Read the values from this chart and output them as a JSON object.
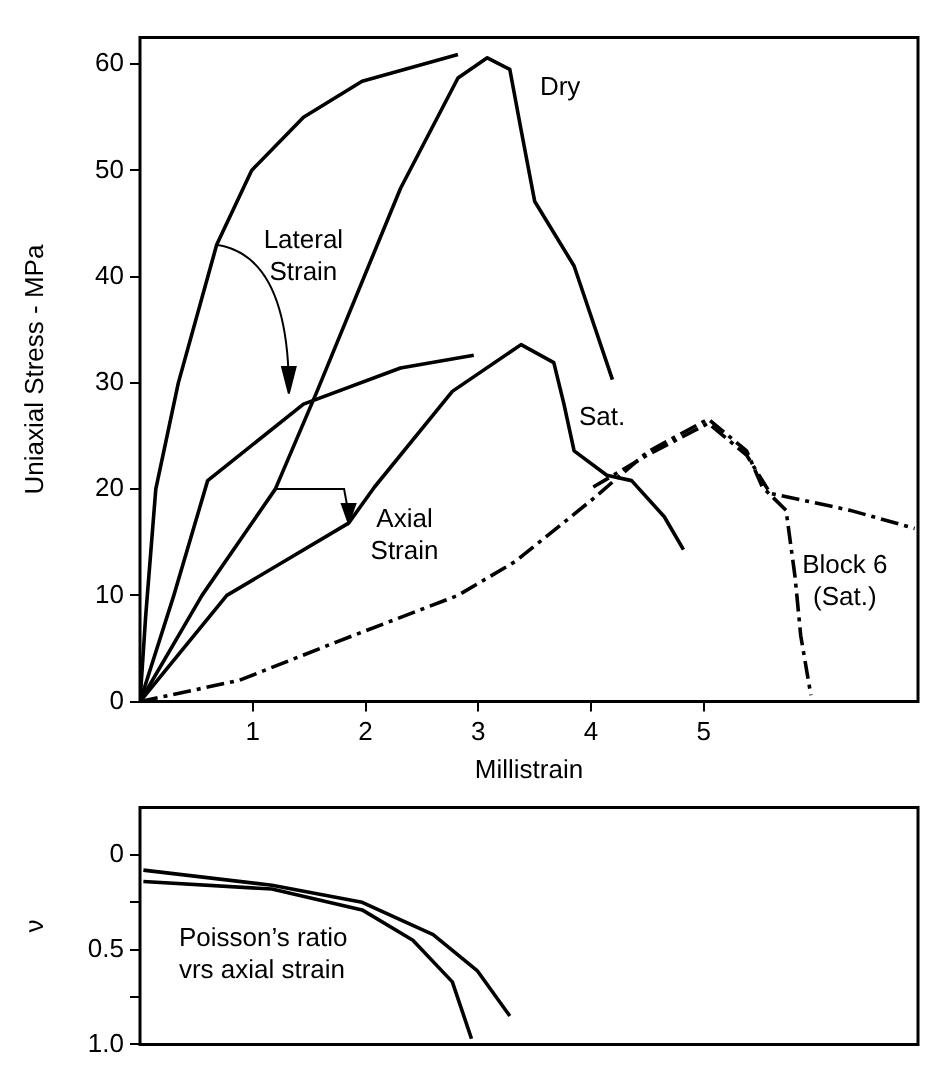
{
  "chart_data": [
    {
      "type": "line",
      "ylabel": "Uniaxial Stress - MPa",
      "xlabel": "Millistrain",
      "xlim": [
        0,
        6.9
      ],
      "ylim": [
        0,
        62.5
      ],
      "xticks": [
        1,
        2,
        3,
        4,
        5
      ],
      "yticks": [
        0,
        10,
        20,
        30,
        40,
        50,
        60
      ],
      "grid": false,
      "legend": false,
      "marker": "none",
      "series": [
        {
          "color": "#000000",
          "line_style": "solid",
          "x": [
            0,
            0.05,
            0.14,
            0.34,
            0.68,
            0.99,
            1.45,
            1.97,
            2.82
          ],
          "values": [
            0,
            8,
            20,
            30,
            43,
            50,
            55,
            58.4,
            60.9
          ]
        },
        {
          "color": "#000000",
          "line_style": "solid",
          "x": [
            0,
            0.55,
            1.2,
            1.57,
            2.31,
            2.82,
            3.08,
            3.28,
            3.38,
            3.5,
            3.85,
            4.19
          ],
          "values": [
            0,
            10,
            20,
            29.2,
            48.3,
            58.7,
            60.6,
            59.5,
            53.8,
            47.1,
            41,
            30.3
          ]
        },
        {
          "color": "#000000",
          "line_style": "solid",
          "x": [
            0,
            0.3,
            0.6,
            1.45,
            2.31,
            2.96
          ],
          "values": [
            0,
            10,
            20.8,
            28,
            31.4,
            32.6
          ]
        },
        {
          "color": "#000000",
          "line_style": "solid",
          "x": [
            0,
            0.77,
            1.85,
            2.08,
            2.77,
            3.38,
            3.67,
            3.76,
            3.85,
            4.14,
            4.36,
            4.65,
            4.82
          ],
          "values": [
            0,
            10,
            16.8,
            20.2,
            29.2,
            33.6,
            31.9,
            28,
            23.6,
            21.3,
            20.8,
            17.4,
            14.3
          ]
        },
        {
          "color": "#000000",
          "line_style": "dashed",
          "x": [
            0,
            0.88,
            1.74,
            2.82,
            3.33,
            4.02,
            4.5,
            5.04,
            5.38,
            5.52,
            5.73,
            5.81,
            5.86,
            5.95
          ],
          "values": [
            0,
            2,
            5.6,
            10,
            13.2,
            19.1,
            23.5,
            26.6,
            23.6,
            20.2,
            18,
            11.7,
            6.2,
            0.6
          ]
        },
        {
          "color": "#000000",
          "line_style": "dashed",
          "x": [
            4.02,
            4.5,
            5.04,
            5.38,
            5.59,
            6.3,
            6.87
          ],
          "values": [
            20.2,
            23.2,
            26.2,
            23.2,
            19.6,
            18,
            16.3
          ]
        }
      ],
      "annotations": [
        "Dry",
        "Sat.",
        "Block 6 (Sat.)",
        "Lateral Strain",
        {
          "text": "Axial Strain",
          "x": 1.85,
          "y": 16.8
        }
      ]
    },
    {
      "type": "line",
      "ylabel": "ν",
      "xlim": [
        0,
        6.9
      ],
      "ylim": [
        1.0,
        -0.25
      ],
      "yticks": [
        0,
        {
          "value": 0.25,
          "label": null
        },
        0.5,
        {
          "value": 0.75,
          "label": null
        },
        {
          "value": 1,
          "label": "1.0"
        }
      ],
      "grid": false,
      "legend": false,
      "marker": "none",
      "tick_labels": "y",
      "series": [
        {
          "color": "#000000",
          "line_style": "solid",
          "x": [
            0.03,
            1.17,
            1.97,
            2.6,
            2.99,
            3.28
          ],
          "values": [
            0.08,
            0.16,
            0.25,
            0.42,
            0.61,
            0.85
          ]
        },
        {
          "color": "#000000",
          "line_style": "solid",
          "x": [
            0.03,
            1.17,
            1.97,
            2.42,
            2.77,
            2.94
          ],
          "values": [
            0.14,
            0.18,
            0.29,
            0.45,
            0.67,
            0.97
          ]
        }
      ],
      "annotations": [
        "Poisson’s ratio vrs axial strain"
      ]
    }
  ]
}
